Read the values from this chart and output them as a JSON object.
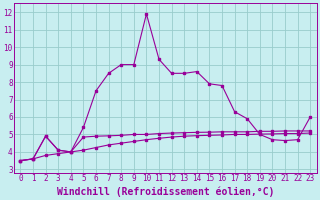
{
  "xlabel": "Windchill (Refroidissement éolien,°C)",
  "background_color": "#c8eef0",
  "grid_color": "#99cccc",
  "line_color": "#990099",
  "xlim": [
    -0.5,
    23.5
  ],
  "ylim": [
    2.8,
    12.5
  ],
  "xticks": [
    0,
    1,
    2,
    3,
    4,
    5,
    6,
    7,
    8,
    9,
    10,
    11,
    12,
    13,
    14,
    15,
    16,
    17,
    18,
    19,
    20,
    21,
    22,
    23
  ],
  "yticks": [
    3,
    4,
    5,
    6,
    7,
    8,
    9,
    10,
    11,
    12
  ],
  "series1_x": [
    0,
    1,
    2,
    3,
    4,
    5,
    6,
    7,
    8,
    9,
    10,
    11,
    12,
    13,
    14,
    15,
    16,
    17,
    18,
    19,
    20,
    21,
    22,
    23
  ],
  "series1_y": [
    3.5,
    3.6,
    4.9,
    4.1,
    4.0,
    5.4,
    7.5,
    8.5,
    9.0,
    9.0,
    11.9,
    9.3,
    8.5,
    8.5,
    8.6,
    7.9,
    7.8,
    6.3,
    5.9,
    5.0,
    4.7,
    4.65,
    4.7,
    6.0
  ],
  "series2_x": [
    0,
    1,
    2,
    3,
    4,
    5,
    6,
    7,
    8,
    9,
    10,
    11,
    12,
    13,
    14,
    15,
    16,
    17,
    18,
    19,
    20,
    21,
    22,
    23
  ],
  "series2_y": [
    3.5,
    3.6,
    4.9,
    4.1,
    4.0,
    4.85,
    4.9,
    4.92,
    4.95,
    5.0,
    5.0,
    5.05,
    5.08,
    5.1,
    5.12,
    5.13,
    5.15,
    5.15,
    5.15,
    5.18,
    5.18,
    5.2,
    5.2,
    5.2
  ],
  "series3_x": [
    0,
    1,
    2,
    3,
    4,
    5,
    6,
    7,
    8,
    9,
    10,
    11,
    12,
    13,
    14,
    15,
    16,
    17,
    18,
    19,
    20,
    21,
    22,
    23
  ],
  "series3_y": [
    3.5,
    3.6,
    3.8,
    3.9,
    4.0,
    4.1,
    4.25,
    4.4,
    4.5,
    4.6,
    4.7,
    4.78,
    4.85,
    4.9,
    4.93,
    4.95,
    4.97,
    5.0,
    5.0,
    5.02,
    5.03,
    5.05,
    5.05,
    5.08
  ],
  "tick_fontsize": 5.5,
  "xlabel_fontsize": 7.0
}
